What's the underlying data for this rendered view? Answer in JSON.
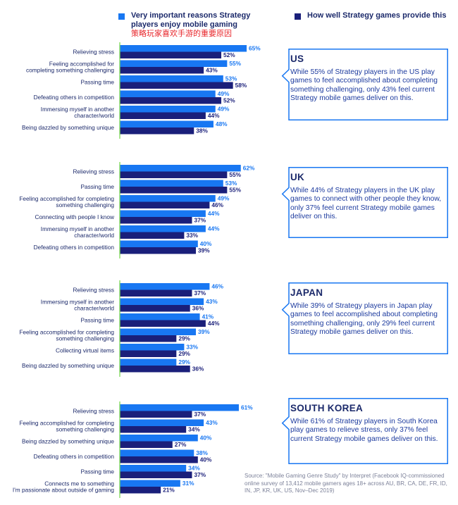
{
  "legend": {
    "important": {
      "label": "Very important reasons Strategy players enjoy mobile gaming",
      "sublabel": "策略玩家喜欢手游的重要原因",
      "color": "#1877f2"
    },
    "provide": {
      "label": "How well Strategy games provide this",
      "color": "#1a1f7a"
    }
  },
  "chart_data": [
    {
      "type": "bar",
      "title": "US",
      "categories": [
        "Relieving stress",
        "Feeling accomplished for completing something challenging",
        "Passing time",
        "Defeating others in competition",
        "Immersing myself in another character/world",
        "Being dazzled by something unique"
      ],
      "series": [
        {
          "name": "Very important reasons Strategy players enjoy mobile gaming",
          "values": [
            65,
            55,
            53,
            49,
            49,
            48
          ]
        },
        {
          "name": "How well Strategy games provide this",
          "values": [
            52,
            43,
            58,
            52,
            44,
            38
          ]
        }
      ],
      "value_labels": [
        [
          "65%",
          "55%",
          "53%",
          "49%",
          "49%",
          "48%"
        ],
        [
          "52%",
          "43%",
          "58%",
          "52%",
          "44%",
          "38%"
        ]
      ]
    },
    {
      "type": "bar",
      "title": "UK",
      "categories": [
        "Relieving stress",
        "Passing time",
        "Feeling accomplished for completing something challenging",
        "Connecting with people I know",
        "Immersing myself in another character/world",
        "Defeating others in competition"
      ],
      "series": [
        {
          "name": "Very important reasons Strategy players enjoy mobile gaming",
          "values": [
            62,
            53,
            49,
            44,
            44,
            40
          ]
        },
        {
          "name": "How well Strategy games provide this",
          "values": [
            55,
            55,
            46,
            37,
            33,
            39
          ]
        }
      ],
      "value_labels": [
        [
          "62%",
          "53%",
          "49%",
          "44%",
          "44%",
          "40%"
        ],
        [
          "55%",
          "55%",
          "46%",
          "37%",
          "33%",
          "39%"
        ]
      ]
    },
    {
      "type": "bar",
      "title": "JAPAN",
      "categories": [
        "Relieving stress",
        "Immersing myself in another character/world",
        "Passing time",
        "Feeling accomplished for completing something challenging",
        "Collecting virtual items",
        "Being dazzled by something unique"
      ],
      "series": [
        {
          "name": "Very important reasons Strategy players enjoy mobile gaming",
          "values": [
            46,
            43,
            41,
            39,
            33,
            29
          ]
        },
        {
          "name": "How well Strategy games provide this",
          "values": [
            37,
            36,
            44,
            29,
            29,
            36
          ]
        }
      ],
      "value_labels": [
        [
          "46%",
          "43%",
          "41%",
          "39%",
          "33%",
          "29%"
        ],
        [
          "37%",
          "36%",
          "44%",
          "29%",
          "29%",
          "36%"
        ]
      ]
    },
    {
      "type": "bar",
      "title": "SOUTH KOREA",
      "categories": [
        "Relieving stress",
        "Feeling accomplished for completing something challenging",
        "Being dazzled by something unique",
        "Defeating others in competition",
        "Passing time",
        "Connects me to something I'm passionate about outside of gaming"
      ],
      "series": [
        {
          "name": "Very important reasons Strategy players enjoy mobile gaming",
          "values": [
            61,
            43,
            40,
            38,
            34,
            31
          ]
        },
        {
          "name": "How well Strategy games provide this",
          "values": [
            37,
            34,
            27,
            40,
            37,
            21
          ]
        }
      ],
      "value_labels": [
        [
          "61%",
          "43%",
          "40%",
          "38%",
          "34%",
          "31%"
        ],
        [
          "37%",
          "34%",
          "27%",
          "40%",
          "37%",
          "21%"
        ]
      ]
    }
  ],
  "chart_labels": [
    [
      [
        "Relieving stress"
      ],
      [
        "Feeling accomplished for",
        "completing something challenging"
      ],
      [
        "Passing time"
      ],
      [
        "Defeating others in competition"
      ],
      [
        "Immersing myself in another",
        "character/world"
      ],
      [
        "Being dazzled by something unique"
      ]
    ],
    [
      [
        "Relieving stress"
      ],
      [
        "Passing time"
      ],
      [
        "Feeling accomplished for completing",
        "something challenging"
      ],
      [
        "Connecting with people I know"
      ],
      [
        "Immersing myself in another",
        "character/world"
      ],
      [
        "Defeating others in competition"
      ]
    ],
    [
      [
        "Relieving stress"
      ],
      [
        "Immersing myself in another",
        "character/world"
      ],
      [
        "Passing time"
      ],
      [
        "Feeling accomplished for completing",
        "something challenging"
      ],
      [
        "Collecting virtual items"
      ],
      [
        "Being dazzled by something unique"
      ]
    ],
    [
      [
        "Relieving stress"
      ],
      [
        "Feeling accomplished for completing",
        "something challenging"
      ],
      [
        "Being dazzled by something unique"
      ],
      [
        "Defeating others in competition"
      ],
      [
        "Passing time"
      ],
      [
        "Connects me to something",
        "I'm passionate about outside of gaming"
      ]
    ]
  ],
  "callouts": [
    {
      "title": "US",
      "text": "While 55% of Strategy players in the US play games to feel accomplished about completing something challenging, only 43% feel current Strategy mobile games deliver on this."
    },
    {
      "title": "UK",
      "text": "While 44% of Strategy players in the UK play games to connect with other people they know, only 37% feel current Strategy mobile games deliver on this."
    },
    {
      "title": "JAPAN",
      "text": "While 39% of Strategy players in Japan play games to feel accomplished about completing something challenging, only 29% feel current Strategy mobile games deliver on this."
    },
    {
      "title": "SOUTH KOREA",
      "text": "While 61% of Strategy players in South Korea play games to relieve stress, only 37% feel current Strategy mobile games deliver on this."
    }
  ],
  "colors": {
    "axis": "#7ed957",
    "callout_border": "#1877f2"
  },
  "source": "Source: \"Mobile Gaming Genre Study\" by Interpret (Facebook IQ-commissioned online survey of 13,412 mobile gamers ages 18+ across AU, BR, CA, DE, FR, ID, IN, JP, KR, UK, US, Nov–Dec 2019)"
}
